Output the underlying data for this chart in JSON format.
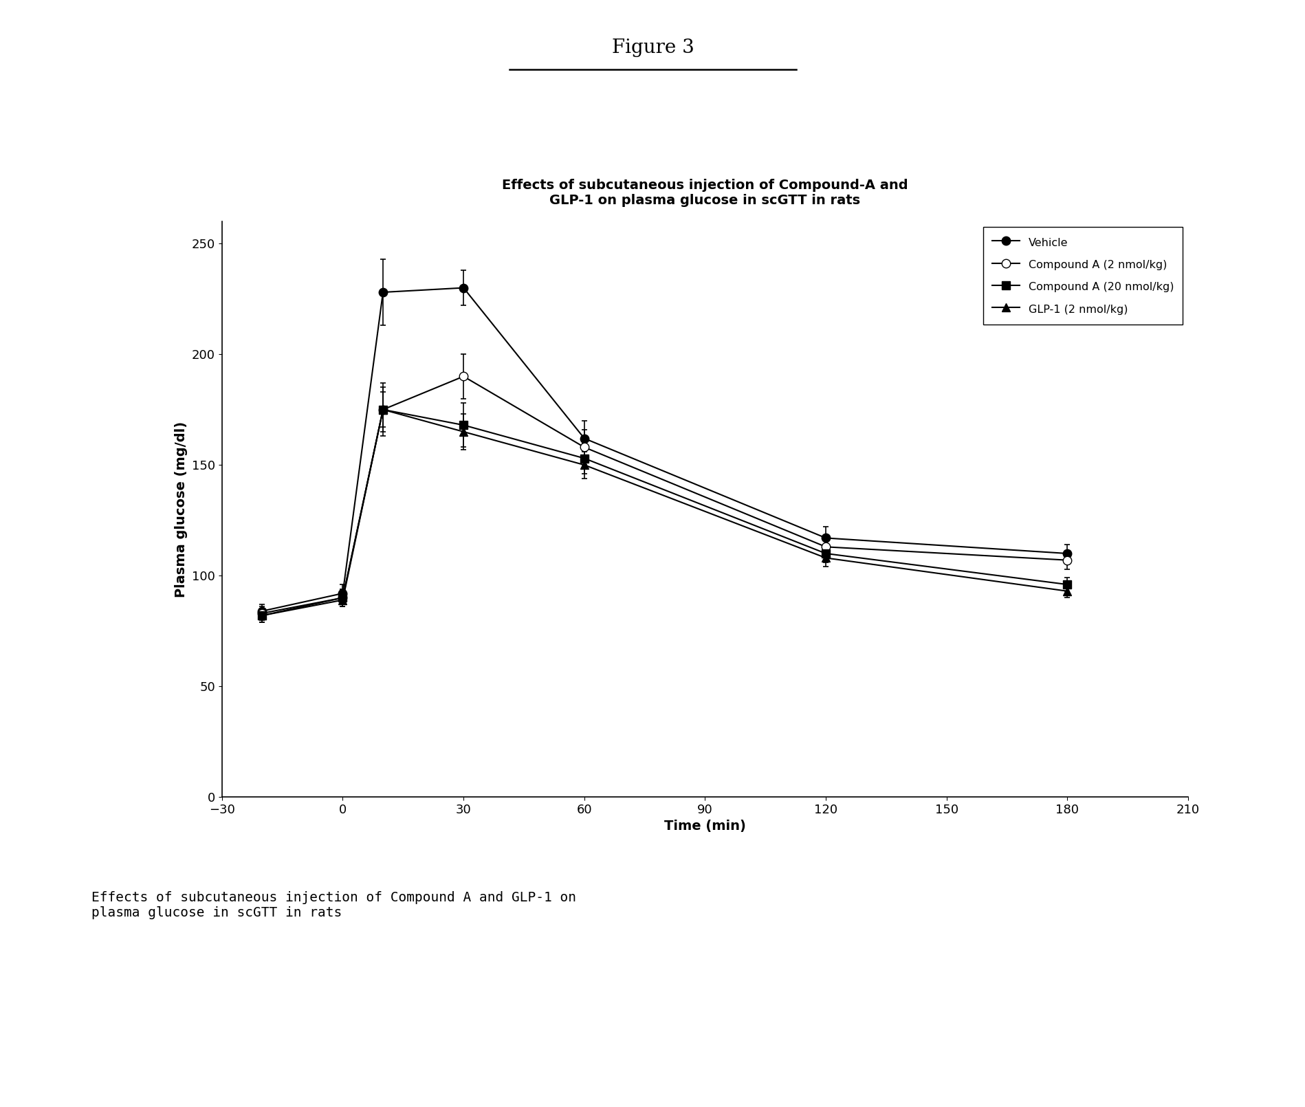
{
  "title_figure": "Figure 3",
  "title_chart_line1": "Effects of subcutaneous injection of Compound-A and",
  "title_chart_line2": "GLP-1 on plasma glucose in scGTT in rats",
  "xlabel": "Time (min)",
  "ylabel": "Plasma glucose (mg/dl)",
  "xlim": [
    -30,
    210
  ],
  "ylim": [
    0,
    260
  ],
  "xticks": [
    -30,
    0,
    30,
    60,
    90,
    120,
    150,
    180,
    210
  ],
  "yticks": [
    0,
    50,
    100,
    150,
    200,
    250
  ],
  "time_points": [
    -20,
    0,
    10,
    30,
    60,
    120,
    180
  ],
  "series": [
    {
      "label": "Vehicle",
      "values": [
        84,
        92,
        228,
        230,
        162,
        117,
        110
      ],
      "errors": [
        3,
        4,
        15,
        8,
        8,
        5,
        4
      ],
      "marker": "o",
      "marker_fill": "black"
    },
    {
      "label": "Compound A (2 nmol/kg)",
      "values": [
        83,
        90,
        175,
        190,
        158,
        113,
        107
      ],
      "errors": [
        3,
        4,
        12,
        10,
        8,
        5,
        4
      ],
      "marker": "o",
      "marker_fill": "white"
    },
    {
      "label": "Compound A (20 nmol/kg)",
      "values": [
        82,
        90,
        175,
        168,
        153,
        110,
        96
      ],
      "errors": [
        3,
        4,
        10,
        10,
        7,
        4,
        3
      ],
      "marker": "s",
      "marker_fill": "black"
    },
    {
      "label": "GLP-1 (2 nmol/kg)",
      "values": [
        82,
        89,
        175,
        165,
        150,
        108,
        93
      ],
      "errors": [
        3,
        3,
        8,
        8,
        6,
        4,
        3
      ],
      "marker": "^",
      "marker_fill": "black"
    }
  ],
  "caption_line1": "Effects of subcutaneous injection of Compound A and GLP-1 on",
  "caption_line2": "plasma glucose in scGTT in rats",
  "background_color": "#ffffff",
  "figure_size": [
    18.99,
    16.1
  ],
  "dpi": 100
}
